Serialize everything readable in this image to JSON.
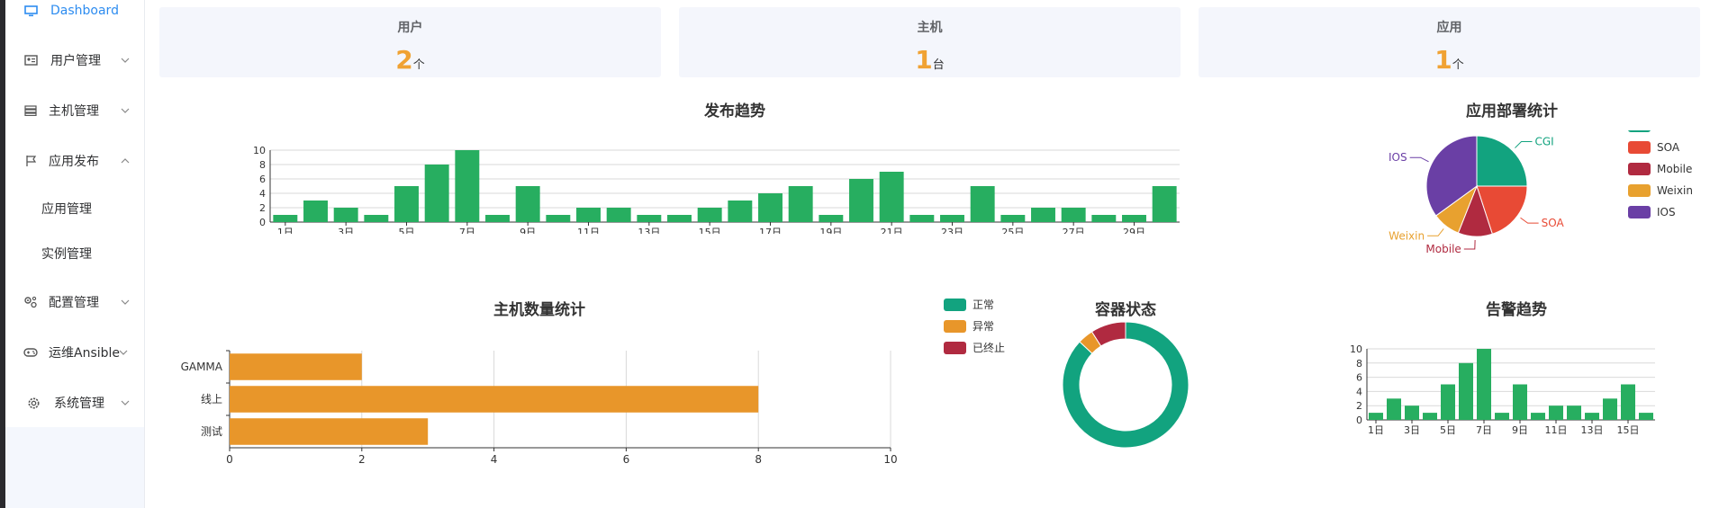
{
  "sidebar": {
    "dashboard": "Dashboard",
    "users": "用户管理",
    "hosts": "主机管理",
    "app_release": "应用发布",
    "app_manage": "应用管理",
    "instance_manage": "实例管理",
    "config": "配置管理",
    "ansible": "运维Ansible",
    "system": "系统管理"
  },
  "cards": [
    {
      "title": "用户",
      "value": "2",
      "unit": "个"
    },
    {
      "title": "主机",
      "value": "1",
      "unit": "台"
    },
    {
      "title": "应用",
      "value": "1",
      "unit": "个"
    }
  ],
  "colors": {
    "accent": "#2d8cf0",
    "bar": "#27ae60",
    "orange_bar": "#e8962a",
    "number": "#f0a233"
  },
  "chart_data": [
    {
      "id": "release",
      "type": "bar",
      "title": "发布趋势",
      "categories": [
        "1日",
        "2日",
        "3日",
        "4日",
        "5日",
        "6日",
        "7日",
        "8日",
        "9日",
        "10日",
        "11日",
        "12日",
        "13日",
        "14日",
        "15日",
        "16日",
        "17日",
        "18日",
        "19日",
        "20日",
        "21日",
        "22日",
        "23日",
        "24日",
        "25日",
        "26日",
        "27日",
        "28日",
        "29日",
        "30日"
      ],
      "values": [
        1,
        3,
        2,
        1,
        5,
        8,
        10,
        1,
        5,
        1,
        2,
        2,
        1,
        1,
        2,
        3,
        4,
        5,
        1,
        6,
        7,
        1,
        1,
        5,
        1,
        2,
        2,
        1,
        1,
        5
      ],
      "ylim": [
        0,
        10
      ],
      "yticks": [
        "0",
        "2",
        "4",
        "6",
        "8",
        "10"
      ],
      "xticklabels": [
        "1日",
        "3日",
        "5日",
        "7日",
        "9日",
        "11日",
        "13日",
        "15日",
        "17日",
        "19日",
        "21日",
        "23日",
        "25日",
        "27日",
        "29日"
      ],
      "grid": true
    },
    {
      "id": "app_deploy",
      "type": "pie",
      "title": "应用部署统计",
      "slices": [
        {
          "name": "CGI",
          "value": 25,
          "color": "#12a37f"
        },
        {
          "name": "SOA",
          "value": 20,
          "color": "#e84a35"
        },
        {
          "name": "Mobile",
          "value": 11,
          "color": "#b02a40"
        },
        {
          "name": "Weixin",
          "value": 9,
          "color": "#e8a12f"
        },
        {
          "name": "IOS",
          "value": 35,
          "color": "#6a3fa5"
        }
      ],
      "legend": "right"
    },
    {
      "id": "host_count",
      "type": "bar",
      "orientation": "horizontal",
      "title": "主机数量统计",
      "categories": [
        "GAMMA",
        "线上",
        "测试"
      ],
      "values": [
        2,
        8,
        3
      ],
      "xlim": [
        0,
        10
      ],
      "xticks": [
        "0",
        "2",
        "4",
        "6",
        "8",
        "10"
      ],
      "grid": true
    },
    {
      "id": "container_status",
      "type": "pie",
      "variant": "donut",
      "title": "容器状态",
      "slices": [
        {
          "name": "正常",
          "value": 87,
          "color": "#12a37f"
        },
        {
          "name": "异常",
          "value": 4,
          "color": "#e8962a"
        },
        {
          "name": "已终止",
          "value": 9,
          "color": "#b02a40"
        }
      ],
      "legend": "left"
    },
    {
      "id": "alarm",
      "type": "bar",
      "title": "告警趋势",
      "categories": [
        "1日",
        "2日",
        "3日",
        "4日",
        "5日",
        "6日",
        "7日",
        "8日",
        "9日",
        "10日",
        "11日",
        "12日",
        "13日",
        "14日",
        "15日",
        "16日"
      ],
      "values": [
        1,
        3,
        2,
        1,
        5,
        8,
        10,
        1,
        5,
        1,
        2,
        2,
        1,
        3,
        5,
        1
      ],
      "ylim": [
        0,
        10
      ],
      "yticks": [
        "0",
        "2",
        "4",
        "6",
        "8",
        "10"
      ],
      "xticklabels": [
        "1日",
        "3日",
        "5日",
        "7日",
        "9日",
        "11日",
        "13日",
        "15日"
      ],
      "grid": true
    }
  ]
}
